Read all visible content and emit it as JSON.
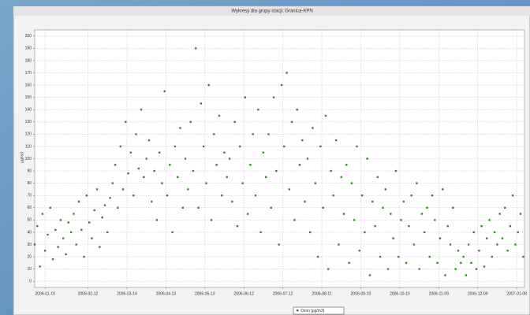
{
  "chart_data": {
    "type": "scatter",
    "title": "Wykresy dla grupy stacji: Granica-KPN",
    "y_label": "µg/m3",
    "grid": true,
    "xlim": [
      1,
      378
    ],
    "ylim": [
      -5,
      205
    ],
    "xticks": [
      {
        "value": 9,
        "label": "2006-01-10"
      },
      {
        "value": 42,
        "label": "2006-02-12"
      },
      {
        "value": 72,
        "label": "2006-03-14"
      },
      {
        "value": 102,
        "label": "2006-04-13"
      },
      {
        "value": 132,
        "label": "2006-05-13"
      },
      {
        "value": 162,
        "label": "2006-06-12"
      },
      {
        "value": 192,
        "label": "2006-07-12"
      },
      {
        "value": 222,
        "label": "2006-08-11"
      },
      {
        "value": 252,
        "label": "2006-09-10"
      },
      {
        "value": 282,
        "label": "2006-10-10"
      },
      {
        "value": 312,
        "label": "2006-11-09"
      },
      {
        "value": 342,
        "label": "2006-12-09"
      },
      {
        "value": 372,
        "label": "2007-01-08"
      }
    ],
    "yticks": [
      0,
      10,
      20,
      30,
      40,
      50,
      60,
      70,
      80,
      90,
      100,
      110,
      120,
      130,
      140,
      150,
      160,
      170,
      180,
      190,
      200
    ],
    "series": [
      {
        "name": "Ozon [µg/m3]",
        "color": "#2f8f1f",
        "x": [
          1,
          3,
          5,
          7,
          9,
          11,
          13,
          15,
          17,
          19,
          21,
          23,
          25,
          27,
          29,
          31,
          33,
          35,
          37,
          39,
          41,
          43,
          45,
          47,
          49,
          51,
          53,
          55,
          57,
          59,
          61,
          63,
          65,
          67,
          69,
          71,
          73,
          75,
          77,
          79,
          81,
          83,
          85,
          87,
          89,
          91,
          93,
          95,
          97,
          99,
          101,
          103,
          105,
          107,
          109,
          111,
          113,
          115,
          117,
          119,
          121,
          123,
          125,
          127,
          129,
          131,
          133,
          135,
          137,
          139,
          141,
          143,
          145,
          147,
          149,
          151,
          153,
          155,
          157,
          159,
          161,
          163,
          165,
          167,
          169,
          171,
          173,
          175,
          177,
          179,
          181,
          183,
          185,
          187,
          189,
          191,
          193,
          195,
          197,
          199,
          201,
          203,
          205,
          207,
          209,
          211,
          213,
          215,
          217,
          219,
          221,
          223,
          225,
          227,
          229,
          231,
          233,
          235,
          237,
          239,
          241,
          243,
          245,
          247,
          249,
          251,
          253,
          255,
          257,
          259,
          261,
          263,
          265,
          267,
          269,
          271,
          273,
          275,
          277,
          279,
          281,
          283,
          285,
          287,
          289,
          291,
          293,
          295,
          297,
          299,
          301,
          303,
          305,
          307,
          309,
          311,
          313,
          315,
          317,
          319,
          321,
          323,
          325,
          327,
          329,
          331,
          333,
          335,
          337,
          339,
          341,
          343,
          345,
          347,
          349,
          351,
          353,
          355,
          357,
          359,
          361,
          363,
          365,
          367,
          369,
          371,
          373,
          375,
          377
        ],
        "values": [
          30,
          45,
          12,
          55,
          25,
          38,
          60,
          18,
          42,
          28,
          50,
          35,
          22,
          48,
          40,
          55,
          30,
          65,
          42,
          20,
          70,
          48,
          35,
          58,
          75,
          28,
          52,
          62,
          40,
          68,
          80,
          95,
          60,
          110,
          75,
          130,
          88,
          105,
          70,
          120,
          92,
          140,
          85,
          100,
          115,
          65,
          90,
          50,
          105,
          80,
          155,
          70,
          95,
          40,
          110,
          85,
          125,
          60,
          100,
          75,
          130,
          90,
          190,
          60,
          145,
          110,
          80,
          160,
          50,
          120,
          95,
          135,
          70,
          105,
          85,
          100,
          65,
          130,
          45,
          110,
          80,
          150,
          55,
          95,
          120,
          70,
          140,
          40,
          105,
          85,
          120,
          60,
          150,
          90,
          30,
          160,
          110,
          170,
          75,
          130,
          50,
          140,
          95,
          115,
          65,
          100,
          40,
          125,
          80,
          20,
          110,
          60,
          135,
          10,
          90,
          70,
          115,
          30,
          85,
          55,
          95,
          15,
          80,
          50,
          110,
          25,
          70,
          40,
          100,
          5,
          65,
          45,
          85,
          20,
          60,
          75,
          10,
          55,
          35,
          90,
          20,
          50,
          65,
          15,
          45,
          70,
          30,
          80,
          10,
          55,
          40,
          60,
          20,
          70,
          50,
          15,
          35,
          75,
          5,
          45,
          30,
          60,
          10,
          25,
          15,
          20,
          5,
          30,
          15,
          40,
          10,
          25,
          45,
          12,
          35,
          50,
          20,
          40,
          30,
          55,
          35,
          60,
          25,
          45,
          70,
          30,
          40,
          55,
          20
        ]
      }
    ]
  }
}
